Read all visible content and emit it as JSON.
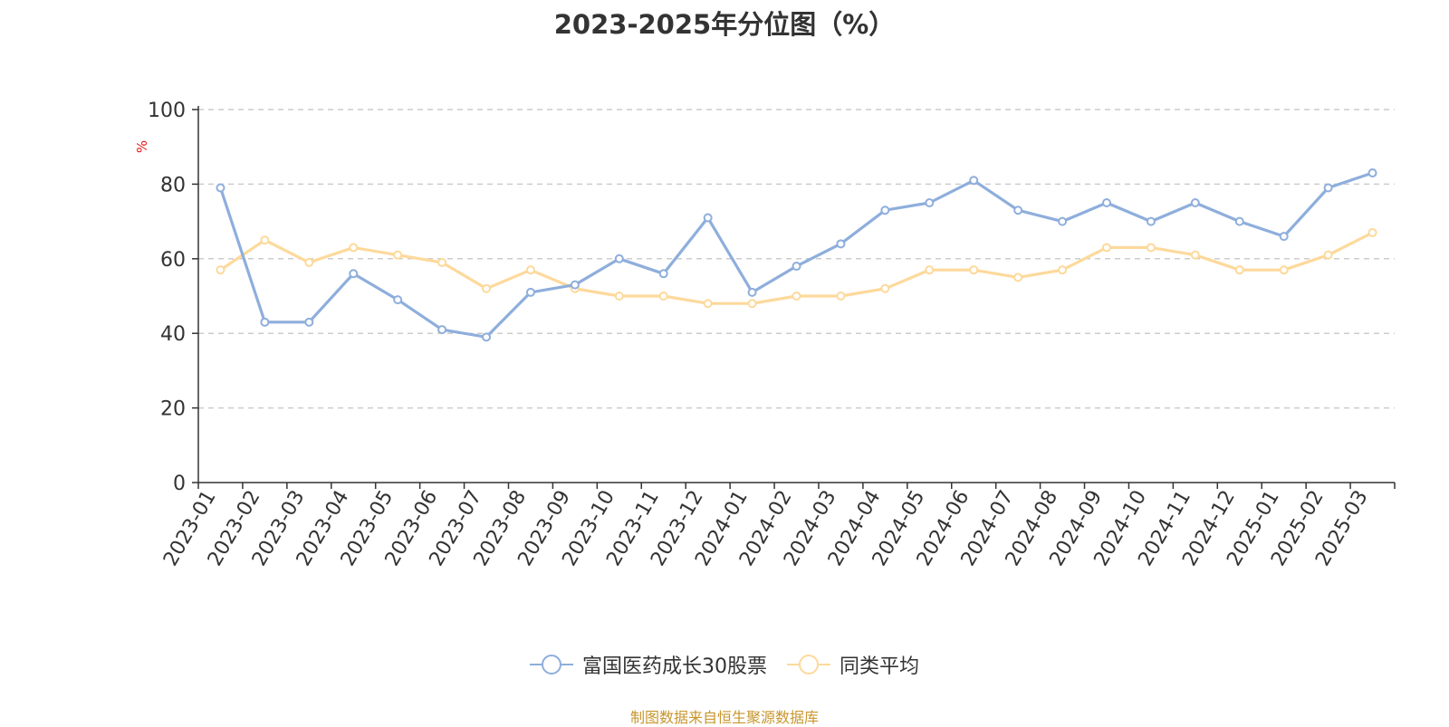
{
  "chart_data": {
    "type": "line",
    "title": "2023-2025年分位图（%）",
    "ylabel": "%",
    "ylim": [
      0,
      100
    ],
    "yticks": [
      0,
      20,
      40,
      60,
      80,
      100
    ],
    "grid": true,
    "legend_position": "bottom",
    "categories": [
      "2023-01",
      "2023-02",
      "2023-03",
      "2023-04",
      "2023-05",
      "2023-06",
      "2023-07",
      "2023-08",
      "2023-09",
      "2023-10",
      "2023-11",
      "2023-12",
      "2024-01",
      "2024-02",
      "2024-03",
      "2024-04",
      "2024-05",
      "2024-06",
      "2024-07",
      "2024-08",
      "2024-09",
      "2024-10",
      "2024-11",
      "2024-12",
      "2025-01",
      "2025-02",
      "2025-03"
    ],
    "series": [
      {
        "name": "富国医药成长30股票",
        "color": "#8eaedc",
        "values": [
          79,
          43,
          43,
          56,
          49,
          41,
          39,
          51,
          53,
          60,
          56,
          71,
          51,
          58,
          64,
          73,
          75,
          81,
          73,
          70,
          75,
          70,
          75,
          70,
          66,
          79,
          83
        ]
      },
      {
        "name": "同类平均",
        "color": "#fdd99b",
        "values": [
          57,
          65,
          59,
          63,
          61,
          59,
          52,
          57,
          52,
          50,
          50,
          48,
          48,
          50,
          50,
          52,
          57,
          57,
          55,
          57,
          63,
          63,
          61,
          57,
          57,
          61,
          67
        ]
      }
    ]
  },
  "source": "制图数据来自恒生聚源数据库"
}
